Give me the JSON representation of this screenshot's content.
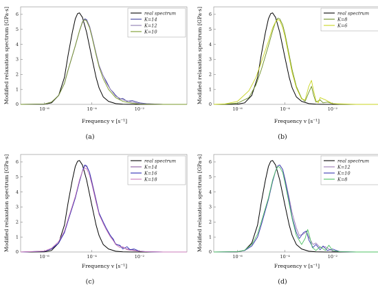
{
  "chart_data": [
    {
      "type": "line",
      "panel_label": "(a)",
      "xlabel": "Frequency v [s⁻¹]",
      "ylabel": "Modified relaxation spectrum [GPa·s]",
      "xscale": "log",
      "xlim": [
        1e-07,
        1
      ],
      "ylim": [
        0,
        6.5
      ],
      "xticks": [
        "10⁻⁶",
        "10⁻⁴",
        "10⁻²"
      ],
      "yticks": [
        "0",
        "1",
        "2",
        "3",
        "4",
        "5",
        "6"
      ],
      "grid": false,
      "legend": "top-right",
      "series": [
        {
          "name": "real spectrum",
          "color": "#000000",
          "x": [
            1e-07,
            3e-07,
            1e-06,
            2e-06,
            4e-06,
            7e-06,
            1e-05,
            1.5e-05,
            2e-05,
            2.5e-05,
            3e-05,
            4e-05,
            6e-05,
            0.0001,
            0.00015,
            0.0002,
            0.0003,
            0.0005,
            0.001,
            0.002,
            0.005,
            0.01,
            0.1,
            1
          ],
          "y": [
            0,
            0,
            0.01,
            0.1,
            0.6,
            1.8,
            3.3,
            4.8,
            5.7,
            6.05,
            6.1,
            5.8,
            4.8,
            3.1,
            1.8,
            1.1,
            0.5,
            0.2,
            0.05,
            0.01,
            0,
            0,
            0,
            0
          ]
        },
        {
          "name": "K=14",
          "color": "#3c3c9c",
          "x": [
            1e-07,
            1e-06,
            2e-06,
            4e-06,
            7e-06,
            1e-05,
            2e-05,
            3e-05,
            4e-05,
            5e-05,
            6e-05,
            8e-05,
            0.0001,
            0.00015,
            0.0002,
            0.0003,
            0.0004,
            0.0006,
            0.0008,
            0.001,
            0.0015,
            0.002,
            0.003,
            0.005,
            0.01,
            0.02,
            0.1,
            1
          ],
          "y": [
            0,
            0.02,
            0.15,
            0.6,
            1.4,
            2.3,
            3.9,
            4.9,
            5.5,
            5.7,
            5.65,
            5.2,
            4.6,
            3.4,
            2.6,
            1.9,
            1.55,
            1.0,
            0.8,
            0.6,
            0.35,
            0.4,
            0.2,
            0.25,
            0.1,
            0.05,
            0,
            0
          ]
        },
        {
          "name": "K=12",
          "color": "#8c7ab0",
          "x": [
            1e-07,
            1e-06,
            2e-06,
            4e-06,
            7e-06,
            1e-05,
            2e-05,
            3e-05,
            4e-05,
            5e-05,
            6e-05,
            8e-05,
            0.0001,
            0.00015,
            0.0002,
            0.0003,
            0.0004,
            0.0006,
            0.0008,
            0.001,
            0.002,
            0.005,
            0.01,
            0.1,
            1
          ],
          "y": [
            0,
            0.02,
            0.15,
            0.6,
            1.4,
            2.3,
            3.9,
            4.9,
            5.45,
            5.65,
            5.6,
            5.2,
            4.6,
            3.4,
            2.6,
            1.9,
            1.45,
            1.0,
            0.75,
            0.55,
            0.3,
            0.15,
            0.05,
            0,
            0
          ]
        },
        {
          "name": "K=10",
          "color": "#7a9a2a",
          "x": [
            1e-07,
            1e-06,
            2e-06,
            4e-06,
            7e-06,
            1e-05,
            2e-05,
            3e-05,
            4e-05,
            5e-05,
            6e-05,
            8e-05,
            0.0001,
            0.00015,
            0.0002,
            0.0003,
            0.0005,
            0.001,
            0.002,
            0.005,
            0.01,
            0.1,
            1
          ],
          "y": [
            0,
            0.02,
            0.15,
            0.6,
            1.4,
            2.3,
            3.9,
            4.9,
            5.5,
            5.65,
            5.55,
            5.1,
            4.5,
            3.3,
            2.5,
            1.7,
            1.0,
            0.45,
            0.2,
            0.07,
            0.02,
            0,
            0
          ]
        }
      ]
    },
    {
      "type": "line",
      "panel_label": "(b)",
      "xlabel": "Frequency v [s⁻¹]",
      "ylabel": "Modified relaxation spectrum [GPa·s]",
      "xscale": "log",
      "xlim": [
        1e-07,
        1
      ],
      "ylim": [
        0,
        6.5
      ],
      "xticks": [
        "10⁻⁶",
        "10⁻⁴",
        "10⁻²"
      ],
      "yticks": [
        "0",
        "1",
        "2",
        "3",
        "4",
        "5",
        "6"
      ],
      "grid": false,
      "legend": "top-right",
      "series": [
        {
          "name": "real spectrum",
          "color": "#000000",
          "x": [
            1e-07,
            3e-07,
            1e-06,
            2e-06,
            4e-06,
            7e-06,
            1e-05,
            1.5e-05,
            2e-05,
            2.5e-05,
            3e-05,
            4e-05,
            6e-05,
            0.0001,
            0.00015,
            0.0002,
            0.0003,
            0.0005,
            0.001,
            0.002,
            0.005,
            0.01,
            0.1,
            1
          ],
          "y": [
            0,
            0,
            0.01,
            0.1,
            0.6,
            1.8,
            3.3,
            4.8,
            5.7,
            6.05,
            6.1,
            5.8,
            4.8,
            3.1,
            1.8,
            1.1,
            0.5,
            0.2,
            0.05,
            0.01,
            0,
            0,
            0,
            0
          ]
        },
        {
          "name": "K=8",
          "color": "#6b8e23",
          "x": [
            1e-07,
            3e-07,
            1e-06,
            3e-06,
            6e-06,
            1e-05,
            2e-05,
            3e-05,
            4e-05,
            5e-05,
            6e-05,
            8e-05,
            0.0001,
            0.00015,
            0.0002,
            0.0003,
            0.0005,
            0.0007,
            0.001,
            0.0013,
            0.0016,
            0.002,
            0.003,
            0.004,
            0.006,
            0.01,
            0.02,
            0.1,
            1
          ],
          "y": [
            0,
            0.01,
            0.08,
            0.45,
            1.3,
            2.3,
            3.9,
            4.9,
            5.5,
            5.75,
            5.7,
            5.3,
            4.7,
            3.3,
            2.3,
            1.2,
            0.4,
            0.2,
            0.8,
            1.2,
            0.6,
            0.15,
            0.3,
            0.1,
            0.15,
            0.05,
            0.01,
            0,
            0
          ]
        },
        {
          "name": "K=6",
          "color": "#c8d41e",
          "x": [
            1e-07,
            3e-07,
            1e-06,
            3e-06,
            6e-06,
            1e-05,
            2e-05,
            3e-05,
            4e-05,
            5e-05,
            6e-05,
            8e-05,
            0.0001,
            0.00015,
            0.0002,
            0.0003,
            0.0005,
            0.0007,
            0.001,
            0.0013,
            0.0016,
            0.002,
            0.0025,
            0.003,
            0.005,
            0.01,
            0.1,
            1
          ],
          "y": [
            0,
            0.03,
            0.2,
            0.9,
            1.8,
            2.8,
            4.2,
            5.1,
            5.5,
            5.65,
            5.6,
            5.1,
            4.5,
            3.1,
            2.1,
            1.1,
            0.35,
            0.3,
            1.2,
            1.6,
            0.9,
            0.25,
            0.1,
            0.45,
            0.3,
            0.05,
            0,
            0
          ]
        }
      ]
    },
    {
      "type": "line",
      "panel_label": "(c)",
      "xlabel": "Frequency v [s⁻¹]",
      "ylabel": "Modified relaxation spectrum [GPa·s]",
      "xscale": "log",
      "xlim": [
        1e-07,
        1
      ],
      "ylim": [
        0,
        6.5
      ],
      "xticks": [
        "10⁻⁶",
        "10⁻⁴",
        "10⁻²"
      ],
      "yticks": [
        "0",
        "1",
        "2",
        "3",
        "4",
        "5",
        "6"
      ],
      "grid": false,
      "legend": "top-right",
      "series": [
        {
          "name": "real spectrum",
          "color": "#000000",
          "x": [
            1e-07,
            3e-07,
            1e-06,
            2e-06,
            4e-06,
            7e-06,
            1e-05,
            1.5e-05,
            2e-05,
            2.5e-05,
            3e-05,
            4e-05,
            6e-05,
            0.0001,
            0.00015,
            0.0002,
            0.0003,
            0.0005,
            0.001,
            0.002,
            0.005,
            0.01,
            0.1,
            1
          ],
          "y": [
            0,
            0,
            0.01,
            0.1,
            0.6,
            1.8,
            3.3,
            4.8,
            5.7,
            6.05,
            6.1,
            5.8,
            4.8,
            3.1,
            1.8,
            1.1,
            0.5,
            0.2,
            0.05,
            0.01,
            0,
            0,
            0,
            0
          ]
        },
        {
          "name": "K=14",
          "color": "#8a5aa0",
          "x": [
            1e-07,
            1e-06,
            2e-06,
            4e-06,
            7e-06,
            1e-05,
            2e-05,
            3e-05,
            4e-05,
            5e-05,
            6e-05,
            8e-05,
            0.0001,
            0.00015,
            0.0002,
            0.0003,
            0.0004,
            0.0006,
            0.0008,
            0.001,
            0.0015,
            0.002,
            0.003,
            0.005,
            0.01,
            0.02,
            0.1,
            1
          ],
          "y": [
            0,
            0.05,
            0.2,
            0.6,
            1.3,
            2.1,
            3.6,
            4.7,
            5.4,
            5.75,
            5.7,
            5.3,
            4.7,
            3.5,
            2.6,
            1.9,
            1.5,
            1.1,
            0.8,
            0.55,
            0.4,
            0.3,
            0.2,
            0.15,
            0.05,
            0.02,
            0,
            0
          ]
        },
        {
          "name": "K=16",
          "color": "#2b2bb5",
          "x": [
            1e-07,
            1e-06,
            2e-06,
            4e-06,
            7e-06,
            1e-05,
            2e-05,
            3e-05,
            4e-05,
            5e-05,
            6e-05,
            8e-05,
            0.0001,
            0.00015,
            0.0002,
            0.0003,
            0.0004,
            0.0006,
            0.0008,
            0.001,
            0.0015,
            0.002,
            0.003,
            0.004,
            0.006,
            0.01,
            0.02,
            0.1,
            1
          ],
          "y": [
            0,
            0.05,
            0.2,
            0.6,
            1.3,
            2.1,
            3.6,
            4.7,
            5.4,
            5.8,
            5.75,
            5.3,
            4.6,
            3.4,
            2.6,
            2.0,
            1.6,
            1.1,
            0.85,
            0.5,
            0.45,
            0.2,
            0.35,
            0.15,
            0.2,
            0.05,
            0.02,
            0,
            0
          ]
        },
        {
          "name": "K=18",
          "color": "#c878b8",
          "x": [
            1e-07,
            1e-06,
            2e-06,
            4e-06,
            7e-06,
            1e-05,
            2e-05,
            3e-05,
            4e-05,
            5e-05,
            6e-05,
            8e-05,
            0.0001,
            0.00015,
            0.0002,
            0.0003,
            0.0004,
            0.0006,
            0.0008,
            0.001,
            0.0015,
            0.002,
            0.003,
            0.005,
            0.01,
            0.02,
            0.1,
            1
          ],
          "y": [
            0,
            0.06,
            0.25,
            0.7,
            1.4,
            2.2,
            3.7,
            4.8,
            5.4,
            5.6,
            5.55,
            5.1,
            4.5,
            3.3,
            2.5,
            1.9,
            1.5,
            1.0,
            0.75,
            0.5,
            0.3,
            0.35,
            0.15,
            0.1,
            0.05,
            0.02,
            0,
            0
          ]
        }
      ]
    },
    {
      "type": "line",
      "panel_label": "(d)",
      "xlabel": "Frequency v [s⁻¹]",
      "ylabel": "Modified relaxation spectrum [GPa·s]",
      "xscale": "log",
      "xlim": [
        1e-07,
        1
      ],
      "ylim": [
        0,
        6.5
      ],
      "xticks": [
        "10⁻⁶",
        "10⁻⁴",
        "10⁻²"
      ],
      "yticks": [
        "0",
        "1",
        "2",
        "3",
        "4",
        "5",
        "6"
      ],
      "grid": false,
      "legend": "top-right",
      "series": [
        {
          "name": "real spectrum",
          "color": "#000000",
          "x": [
            1e-07,
            3e-07,
            1e-06,
            2e-06,
            4e-06,
            7e-06,
            1e-05,
            1.5e-05,
            2e-05,
            2.5e-05,
            3e-05,
            4e-05,
            6e-05,
            0.0001,
            0.00015,
            0.0002,
            0.0003,
            0.0005,
            0.001,
            0.002,
            0.005,
            0.01,
            0.1,
            1
          ],
          "y": [
            0,
            0,
            0.01,
            0.1,
            0.6,
            1.8,
            3.3,
            4.8,
            5.7,
            6.05,
            6.1,
            5.8,
            4.8,
            3.1,
            1.8,
            1.1,
            0.5,
            0.2,
            0.05,
            0.01,
            0,
            0,
            0,
            0
          ]
        },
        {
          "name": "K=12",
          "color": "#9a7ab5",
          "x": [
            1e-07,
            1e-06,
            2e-06,
            4e-06,
            7e-06,
            1e-05,
            2e-05,
            3e-05,
            4e-05,
            5e-05,
            6e-05,
            8e-05,
            0.0001,
            0.00015,
            0.0002,
            0.0003,
            0.0004,
            0.0006,
            0.0008,
            0.001,
            0.0015,
            0.002,
            0.003,
            0.005,
            0.01,
            0.1,
            1
          ],
          "y": [
            0,
            0.02,
            0.1,
            0.4,
            1.0,
            1.8,
            3.5,
            4.7,
            5.4,
            5.75,
            5.8,
            5.5,
            4.9,
            3.6,
            2.6,
            1.6,
            1.1,
            1.2,
            1.35,
            1.0,
            0.5,
            0.6,
            0.3,
            0.35,
            0.05,
            0,
            0
          ]
        },
        {
          "name": "K=10",
          "color": "#3a3ab0",
          "x": [
            1e-07,
            1e-06,
            2e-06,
            4e-06,
            7e-06,
            1e-05,
            2e-05,
            3e-05,
            4e-05,
            5e-05,
            6e-05,
            8e-05,
            0.0001,
            0.00015,
            0.0002,
            0.0003,
            0.0004,
            0.0006,
            0.0008,
            0.001,
            0.0015,
            0.002,
            0.003,
            0.004,
            0.006,
            0.01,
            0.02,
            0.1,
            1
          ],
          "y": [
            0,
            0.02,
            0.1,
            0.4,
            1.0,
            1.8,
            3.5,
            4.7,
            5.4,
            5.75,
            5.8,
            5.5,
            4.8,
            3.4,
            2.3,
            1.3,
            0.9,
            1.3,
            1.4,
            0.8,
            0.3,
            0.5,
            0.15,
            0.4,
            0.1,
            0.2,
            0.02,
            0,
            0
          ]
        },
        {
          "name": "K=8",
          "color": "#4cc060",
          "x": [
            1e-07,
            1e-06,
            2e-06,
            4e-06,
            7e-06,
            1e-05,
            2e-05,
            3e-05,
            4e-05,
            5e-05,
            6e-05,
            8e-05,
            0.0001,
            0.00015,
            0.0002,
            0.0003,
            0.0005,
            0.0007,
            0.0009,
            0.0011,
            0.0014,
            0.002,
            0.003,
            0.005,
            0.007,
            0.01,
            0.02,
            0.1,
            1
          ],
          "y": [
            0,
            0.02,
            0.12,
            0.5,
            1.2,
            2.0,
            3.6,
            4.8,
            5.4,
            5.7,
            5.65,
            5.3,
            4.6,
            3.2,
            2.2,
            1.1,
            0.5,
            0.9,
            1.5,
            1.0,
            0.3,
            0.1,
            0.35,
            0.1,
            0.45,
            0.1,
            0.02,
            0,
            0
          ]
        }
      ]
    }
  ]
}
